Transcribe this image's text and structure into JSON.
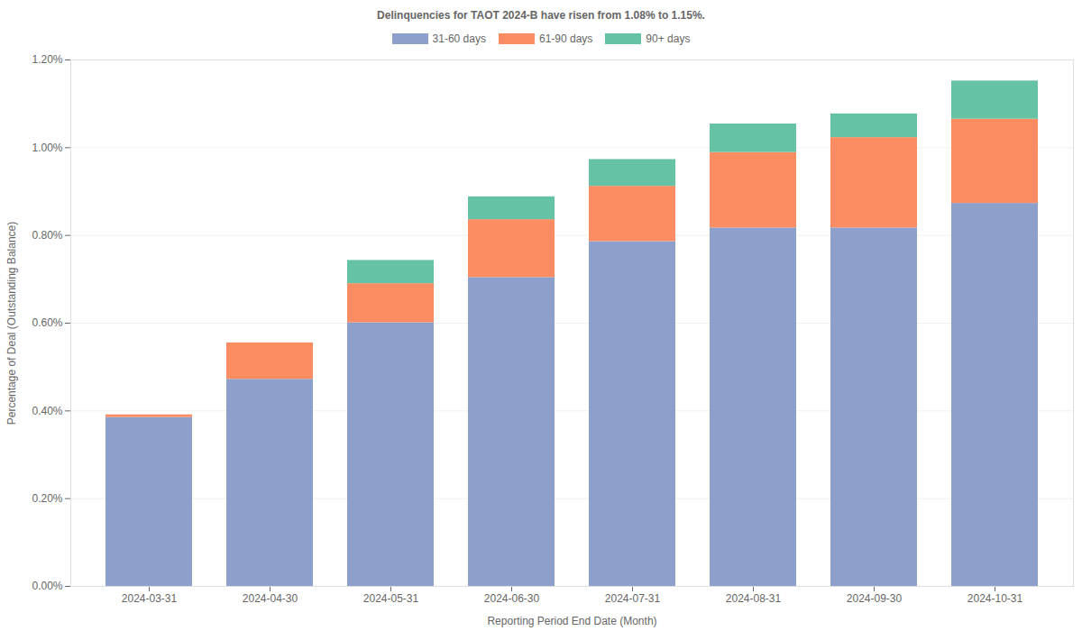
{
  "chart_data": {
    "type": "bar",
    "stacked": true,
    "title": "Delinquencies for TAOT 2024-B have risen from 1.08% to 1.15%.",
    "x_label": "Reporting Period End Date (Month)",
    "y_label": "Percentage of Deal (Outstanding Balance)",
    "categories": [
      "2024-03-31",
      "2024-04-30",
      "2024-05-31",
      "2024-06-30",
      "2024-07-31",
      "2024-08-31",
      "2024-09-30",
      "2024-10-31"
    ],
    "series": [
      {
        "name": "31-60 days",
        "color": "#8da0cb",
        "values": [
          0.385,
          0.472,
          0.601,
          0.704,
          0.786,
          0.817,
          0.817,
          0.873
        ]
      },
      {
        "name": "61-90 days",
        "color": "#fc8d62",
        "values": [
          0.006,
          0.083,
          0.089,
          0.132,
          0.126,
          0.172,
          0.206,
          0.192
        ]
      },
      {
        "name": "90+ days",
        "color": "#66c2a5",
        "values": [
          0,
          0,
          0.053,
          0.052,
          0.061,
          0.065,
          0.054,
          0.087
        ]
      }
    ],
    "ylim": [
      0,
      1.2
    ],
    "yticks": [
      {
        "value": 0,
        "label": "0.00%"
      },
      {
        "value": 0.2,
        "label": "0.20%"
      },
      {
        "value": 0.4,
        "label": "0.40%"
      },
      {
        "value": 0.6,
        "label": "0.60%"
      },
      {
        "value": 0.8,
        "label": "0.80%"
      },
      {
        "value": 1.0,
        "label": "1.00%"
      },
      {
        "value": 1.2,
        "label": "1.20%"
      }
    ],
    "grid": true,
    "legend": "top"
  }
}
